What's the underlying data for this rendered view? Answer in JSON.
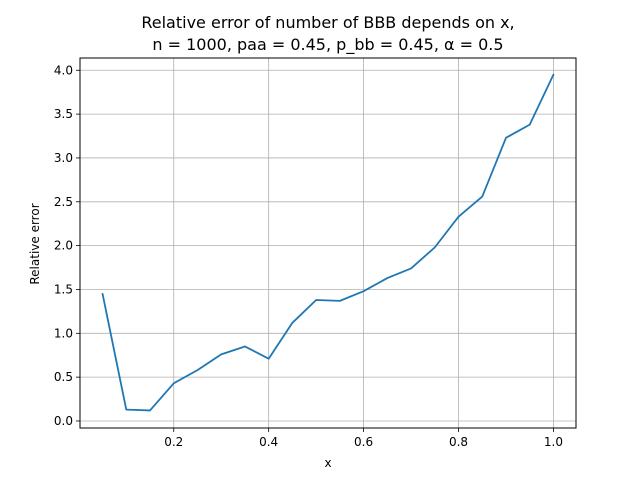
{
  "chart_data": {
    "type": "line",
    "title_line1": "Relative error of number of BBB depends on x,",
    "title_line2": "n = 1000, paa = 0.45, p_bb = 0.45, α = 0.5",
    "xlabel": "x",
    "ylabel": "Relative error",
    "xlim": [
      0.0025,
      1.0475
    ],
    "ylim": [
      -0.08,
      4.14
    ],
    "xticks": [
      0.2,
      0.4,
      0.6,
      0.8,
      1.0
    ],
    "xtick_labels": [
      "0.2",
      "0.4",
      "0.6",
      "0.8",
      "1.0"
    ],
    "yticks": [
      0.0,
      0.5,
      1.0,
      1.5,
      2.0,
      2.5,
      3.0,
      3.5,
      4.0
    ],
    "ytick_labels": [
      "0.0",
      "0.5",
      "1.0",
      "1.5",
      "2.0",
      "2.5",
      "3.0",
      "3.5",
      "4.0"
    ],
    "grid": true,
    "series": [
      {
        "color": "#1f77b4",
        "x": [
          0.05,
          0.1,
          0.15,
          0.2,
          0.25,
          0.3,
          0.35,
          0.4,
          0.45,
          0.5,
          0.55,
          0.6,
          0.65,
          0.7,
          0.75,
          0.8,
          0.85,
          0.9,
          0.95,
          1.0
        ],
        "y": [
          1.45,
          0.13,
          0.12,
          0.43,
          0.58,
          0.76,
          0.85,
          0.71,
          1.12,
          1.38,
          1.37,
          1.48,
          1.63,
          1.74,
          1.98,
          2.33,
          2.56,
          3.23,
          3.38,
          3.95
        ]
      }
    ]
  }
}
